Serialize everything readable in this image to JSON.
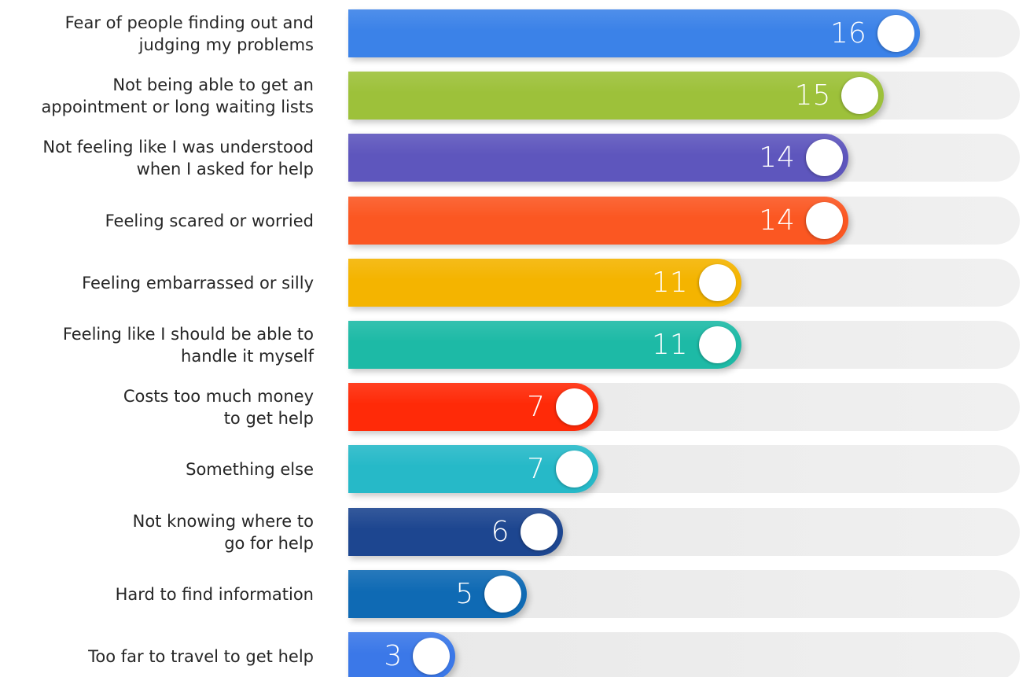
{
  "chart_data": {
    "type": "bar",
    "orientation": "horizontal",
    "title": "",
    "xlabel": "",
    "ylabel": "",
    "xlim": [
      0,
      18.8
    ],
    "grid": false,
    "legend": "none",
    "categories": [
      "Fear of people finding out and\njudging my problems",
      "Not being able to get an\nappointment or long waiting lists",
      "Not feeling like I was understood\nwhen I asked for help",
      "Feeling scared or worried",
      "Feeling embarrassed or silly",
      "Feeling like I should be able to\nhandle it myself",
      "Costs too much money\nto get help",
      "Something else",
      "Not knowing where to\ngo for help",
      "Hard to find information",
      "Too far to travel to get help"
    ],
    "values": [
      16,
      15,
      14,
      14,
      11,
      11,
      7,
      7,
      6,
      5,
      3
    ],
    "colors": [
      "#3b82e8",
      "#9dc13a",
      "#5e56bd",
      "#fb5722",
      "#f4b400",
      "#1dbaa6",
      "#ff2a08",
      "#26b9c8",
      "#1d4690",
      "#0f6ab4",
      "#3b78e8"
    ],
    "track_color": "#e8e8e8"
  }
}
